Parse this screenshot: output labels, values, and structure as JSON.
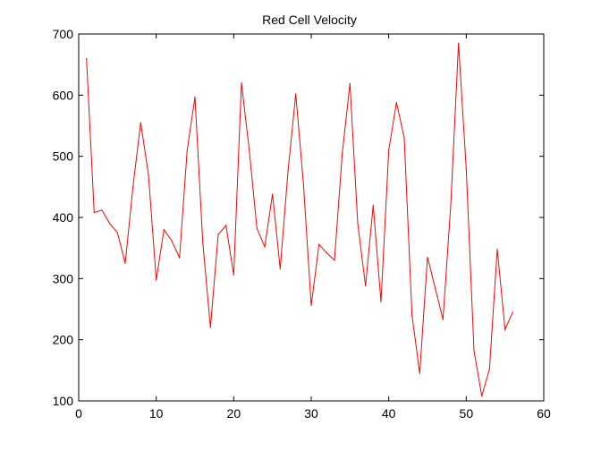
{
  "chart_data": {
    "type": "line",
    "title": "Red Cell Velocity",
    "xlabel": "",
    "ylabel": "",
    "xlim": [
      0,
      60
    ],
    "ylim": [
      100,
      700
    ],
    "xticks": [
      0,
      10,
      20,
      30,
      40,
      50,
      60
    ],
    "yticks": [
      100,
      200,
      300,
      400,
      500,
      600,
      700
    ],
    "grid": false,
    "series": [
      {
        "color": "#ff0000",
        "x": [
          1,
          2,
          3,
          4,
          5,
          6,
          7,
          8,
          9,
          10,
          11,
          12,
          13,
          14,
          15,
          16,
          17,
          18,
          19,
          20,
          21,
          22,
          23,
          24,
          25,
          26,
          27,
          28,
          29,
          30,
          31,
          32,
          33,
          34,
          35,
          36,
          37,
          38,
          39,
          40,
          41,
          42,
          43,
          44,
          45,
          46,
          47,
          48,
          49,
          50,
          51,
          52,
          53,
          54,
          55,
          56
        ],
        "values": [
          660,
          408,
          412,
          390,
          375,
          325,
          450,
          555,
          470,
          298,
          380,
          362,
          334,
          510,
          597,
          360,
          220,
          372,
          387,
          306,
          620,
          510,
          382,
          352,
          438,
          316,
          475,
          602,
          455,
          256,
          356,
          342,
          330,
          505,
          619,
          390,
          288,
          420,
          262,
          510,
          588,
          530,
          240,
          145,
          335,
          284,
          233,
          420,
          685,
          480,
          182,
          108,
          152,
          348,
          217,
          245
        ]
      }
    ]
  }
}
